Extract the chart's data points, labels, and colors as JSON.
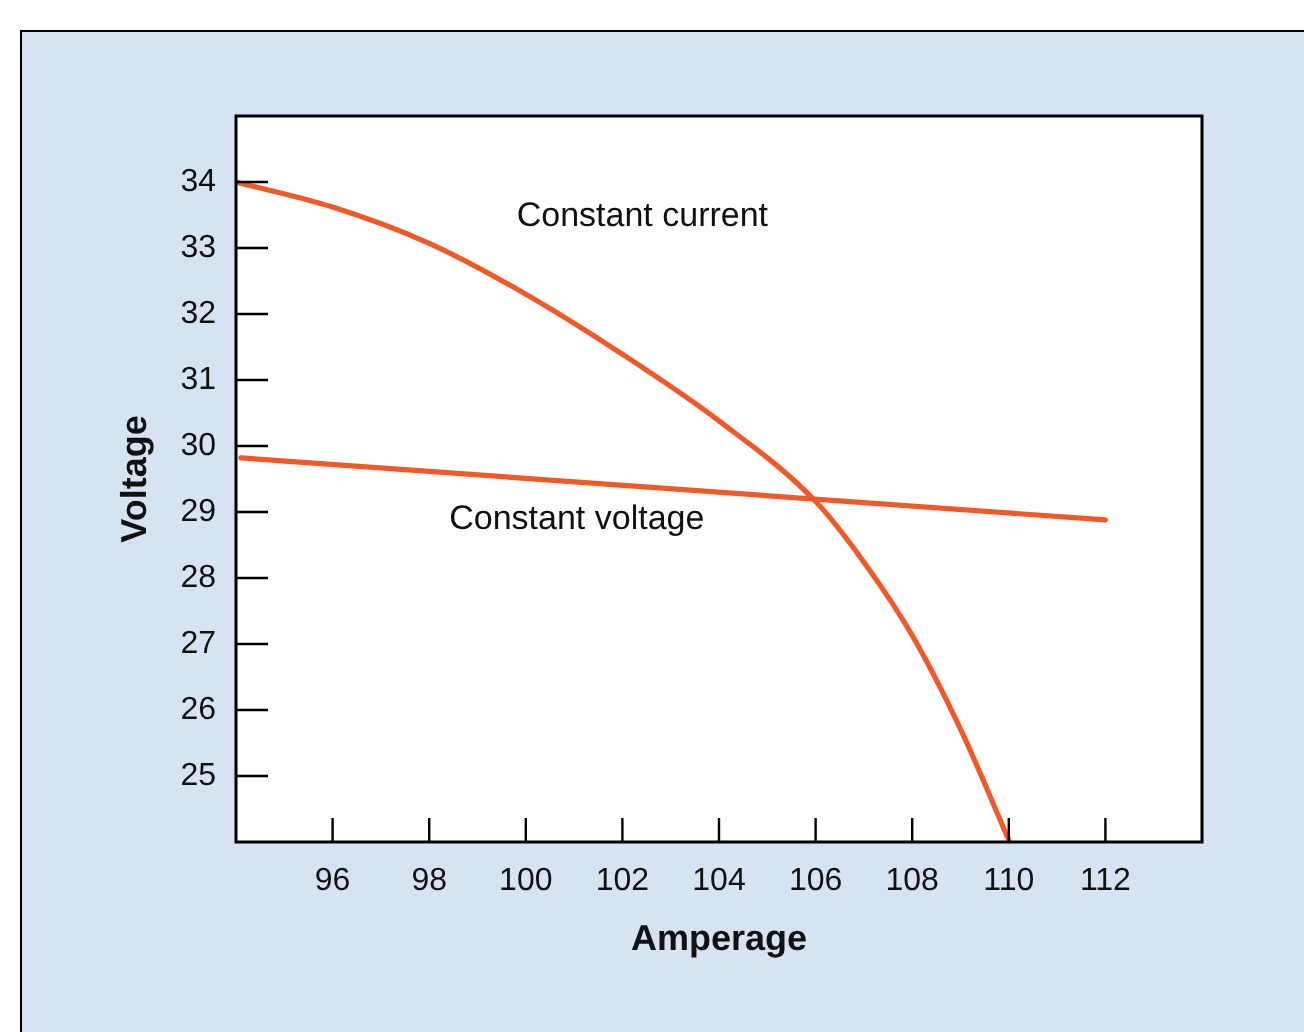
{
  "chart_data": {
    "type": "line",
    "xlabel": "Amperage",
    "ylabel": "Voltage",
    "xlim": [
      94,
      114
    ],
    "ylim": [
      24,
      35
    ],
    "xticks": [
      96,
      98,
      100,
      102,
      104,
      106,
      108,
      110,
      112
    ],
    "yticks": [
      25,
      26,
      27,
      28,
      29,
      30,
      31,
      32,
      33,
      34
    ],
    "grid": false,
    "legend": false,
    "marker": "none",
    "line_style": "solid",
    "series": [
      {
        "name": "Constant current",
        "color": "#f05a28",
        "x": [
          94,
          96,
          98,
          100,
          102,
          104,
          106,
          107,
          108,
          109,
          110
        ],
        "values": [
          34,
          33.62,
          33.07,
          32.3,
          31.39,
          30.38,
          29.16,
          28.24,
          27.13,
          25.71,
          24.03
        ]
      },
      {
        "name": "Constant voltage",
        "color": "#f05a28",
        "x": [
          94.1,
          112
        ],
        "values": [
          29.82,
          28.88
        ]
      }
    ]
  }
}
